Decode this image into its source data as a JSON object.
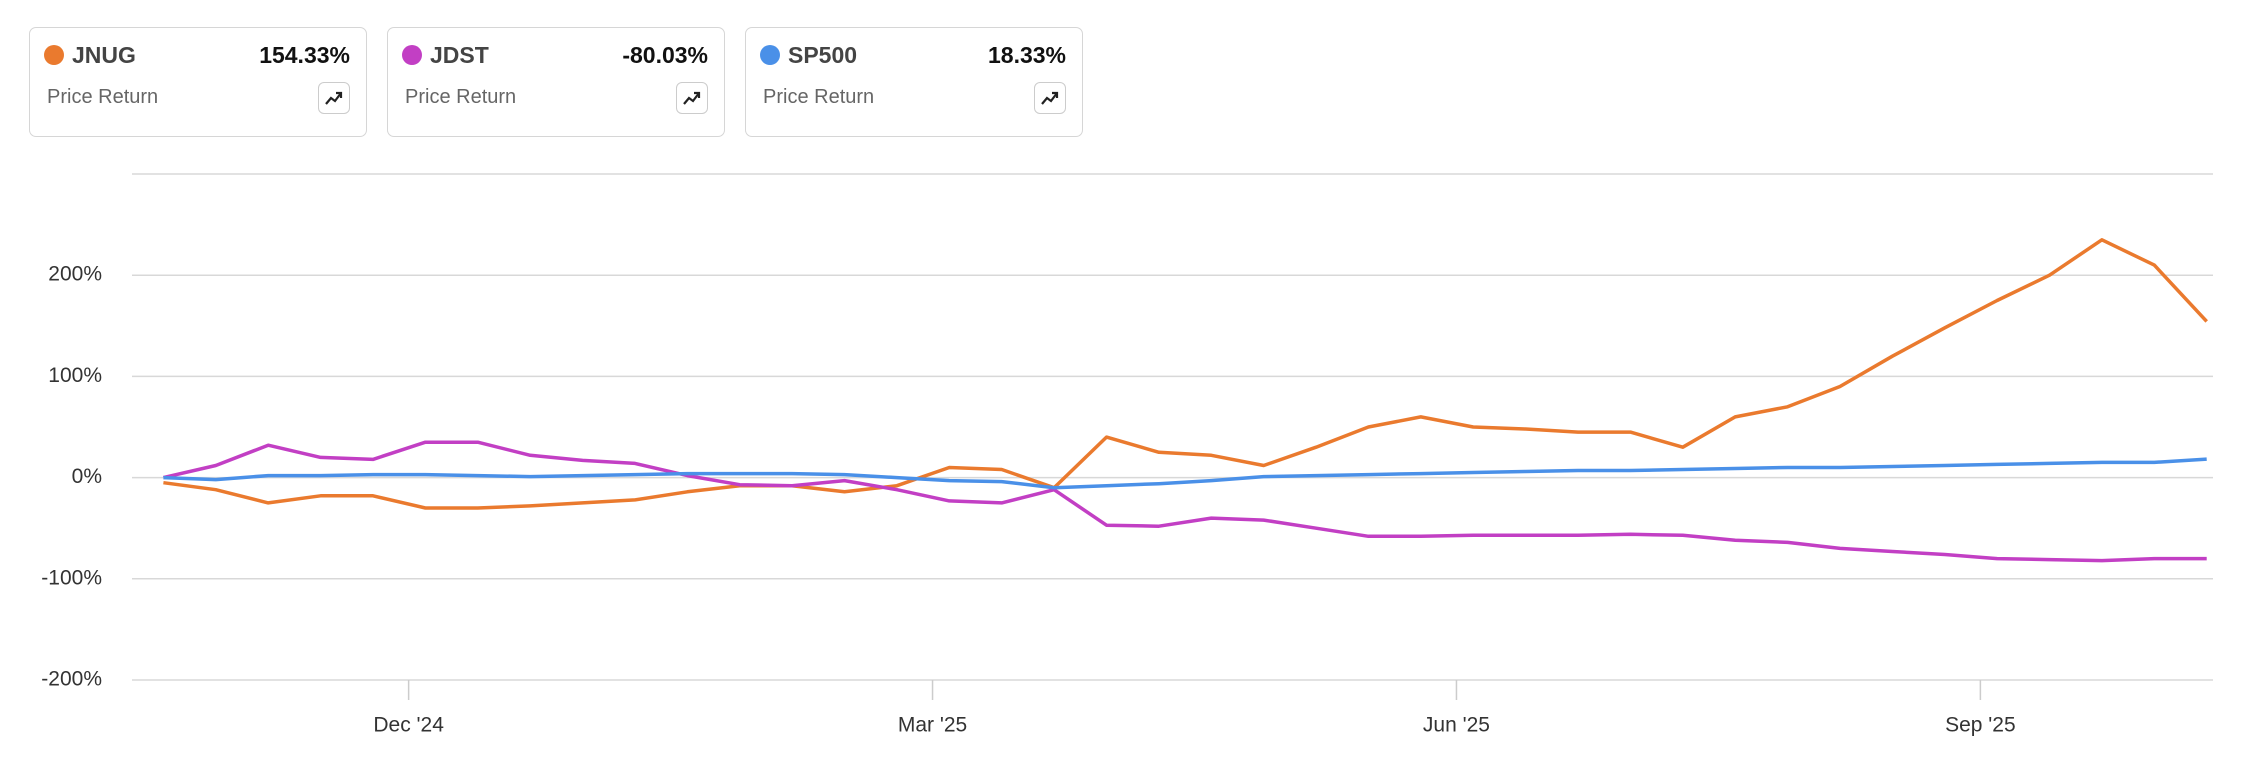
{
  "chart_data": {
    "type": "line",
    "return_type": "Price Return",
    "x": [
      2024.8,
      2024.825,
      2024.85,
      2024.875,
      2024.9,
      2024.925,
      2024.95,
      2024.975,
      2025.0,
      2025.025,
      2025.05,
      2025.075,
      2025.1,
      2025.125,
      2025.15,
      2025.175,
      2025.2,
      2025.225,
      2025.25,
      2025.275,
      2025.3,
      2025.325,
      2025.35,
      2025.375,
      2025.4,
      2025.425,
      2025.45,
      2025.475,
      2025.5,
      2025.525,
      2025.55,
      2025.575,
      2025.6,
      2025.625,
      2025.65,
      2025.675,
      2025.7,
      2025.725,
      2025.75,
      2025.775
    ],
    "xlim": [
      2024.785,
      2025.778
    ],
    "xticks": [
      {
        "value": 2024.917,
        "label": "Dec '24"
      },
      {
        "value": 2025.167,
        "label": "Mar '25"
      },
      {
        "value": 2025.417,
        "label": "Jun '25"
      },
      {
        "value": 2025.667,
        "label": "Sep '25"
      }
    ],
    "ylim": [
      -200,
      300
    ],
    "yticks": [
      {
        "value": -200,
        "label": "-200%"
      },
      {
        "value": -100,
        "label": "-100%"
      },
      {
        "value": 0,
        "label": "0%"
      },
      {
        "value": 100,
        "label": "100%"
      },
      {
        "value": 200,
        "label": "200%"
      }
    ],
    "grid": true,
    "series": [
      {
        "name": "JNUG",
        "color": "#ea7a2e",
        "return_label": "154.33%",
        "values": [
          -5,
          -12,
          -25,
          -18,
          -18,
          -30,
          -30,
          -28,
          -25,
          -22,
          -14,
          -8,
          -8,
          -14,
          -8,
          10,
          8,
          -10,
          40,
          25,
          22,
          12,
          30,
          50,
          60,
          50,
          48,
          45,
          45,
          30,
          60,
          70,
          90,
          120,
          148,
          175,
          200,
          235,
          210,
          154.33
        ]
      },
      {
        "name": "JDST",
        "color": "#c23fc4",
        "return_label": "-80.03%",
        "values": [
          0,
          12,
          32,
          20,
          18,
          35,
          35,
          22,
          17,
          14,
          2,
          -7,
          -8,
          -3,
          -12,
          -23,
          -25,
          -12,
          -47,
          -48,
          -40,
          -42,
          -50,
          -58,
          -58,
          -57,
          -57,
          -57,
          -56,
          -57,
          -62,
          -64,
          -70,
          -73,
          -76,
          -80,
          -81,
          -82,
          -80,
          -80.03
        ]
      },
      {
        "name": "SP500",
        "color": "#4a90e8",
        "return_label": "18.33%",
        "values": [
          0,
          -2,
          2,
          2,
          3,
          3,
          2,
          1,
          2,
          3,
          4,
          4,
          4,
          3,
          0,
          -3,
          -4,
          -10,
          -8,
          -6,
          -3,
          1,
          2,
          3,
          4,
          5,
          6,
          7,
          7,
          8,
          9,
          10,
          10,
          11,
          12,
          13,
          14,
          15,
          15,
          18.33
        ]
      }
    ]
  }
}
